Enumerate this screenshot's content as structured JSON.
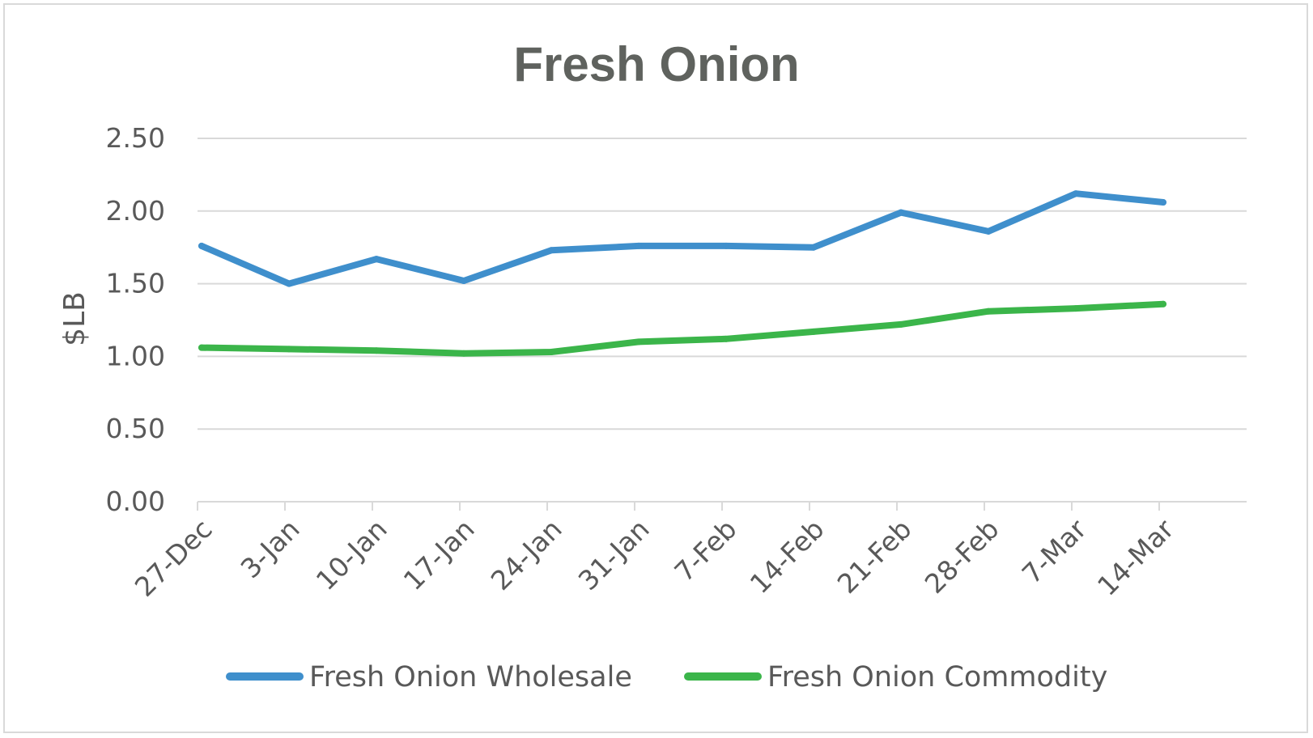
{
  "chart_data": {
    "type": "line",
    "title": "Fresh Onion",
    "xlabel": "",
    "ylabel": "$LB",
    "ylim": [
      0,
      2.5
    ],
    "yticks": [
      "0.00",
      "0.50",
      "1.00",
      "1.50",
      "2.00",
      "2.50"
    ],
    "categories": [
      "27-Dec",
      "3-Jan",
      "10-Jan",
      "17-Jan",
      "24-Jan",
      "31-Jan",
      "7-Feb",
      "14-Feb",
      "21-Feb",
      "28-Feb",
      "7-Mar",
      "14-Mar"
    ],
    "grid": true,
    "legend": "bottom",
    "series": [
      {
        "name": "Fresh Onion Wholesale",
        "color": "#3f8fcc",
        "values": [
          1.76,
          1.5,
          1.67,
          1.52,
          1.73,
          1.76,
          1.76,
          1.75,
          1.99,
          1.86,
          2.12,
          2.06
        ]
      },
      {
        "name": "Fresh Onion Commodity",
        "color": "#3bb54a",
        "values": [
          1.06,
          1.05,
          1.04,
          1.02,
          1.03,
          1.1,
          1.12,
          1.17,
          1.22,
          1.31,
          1.33,
          1.36
        ]
      }
    ]
  }
}
